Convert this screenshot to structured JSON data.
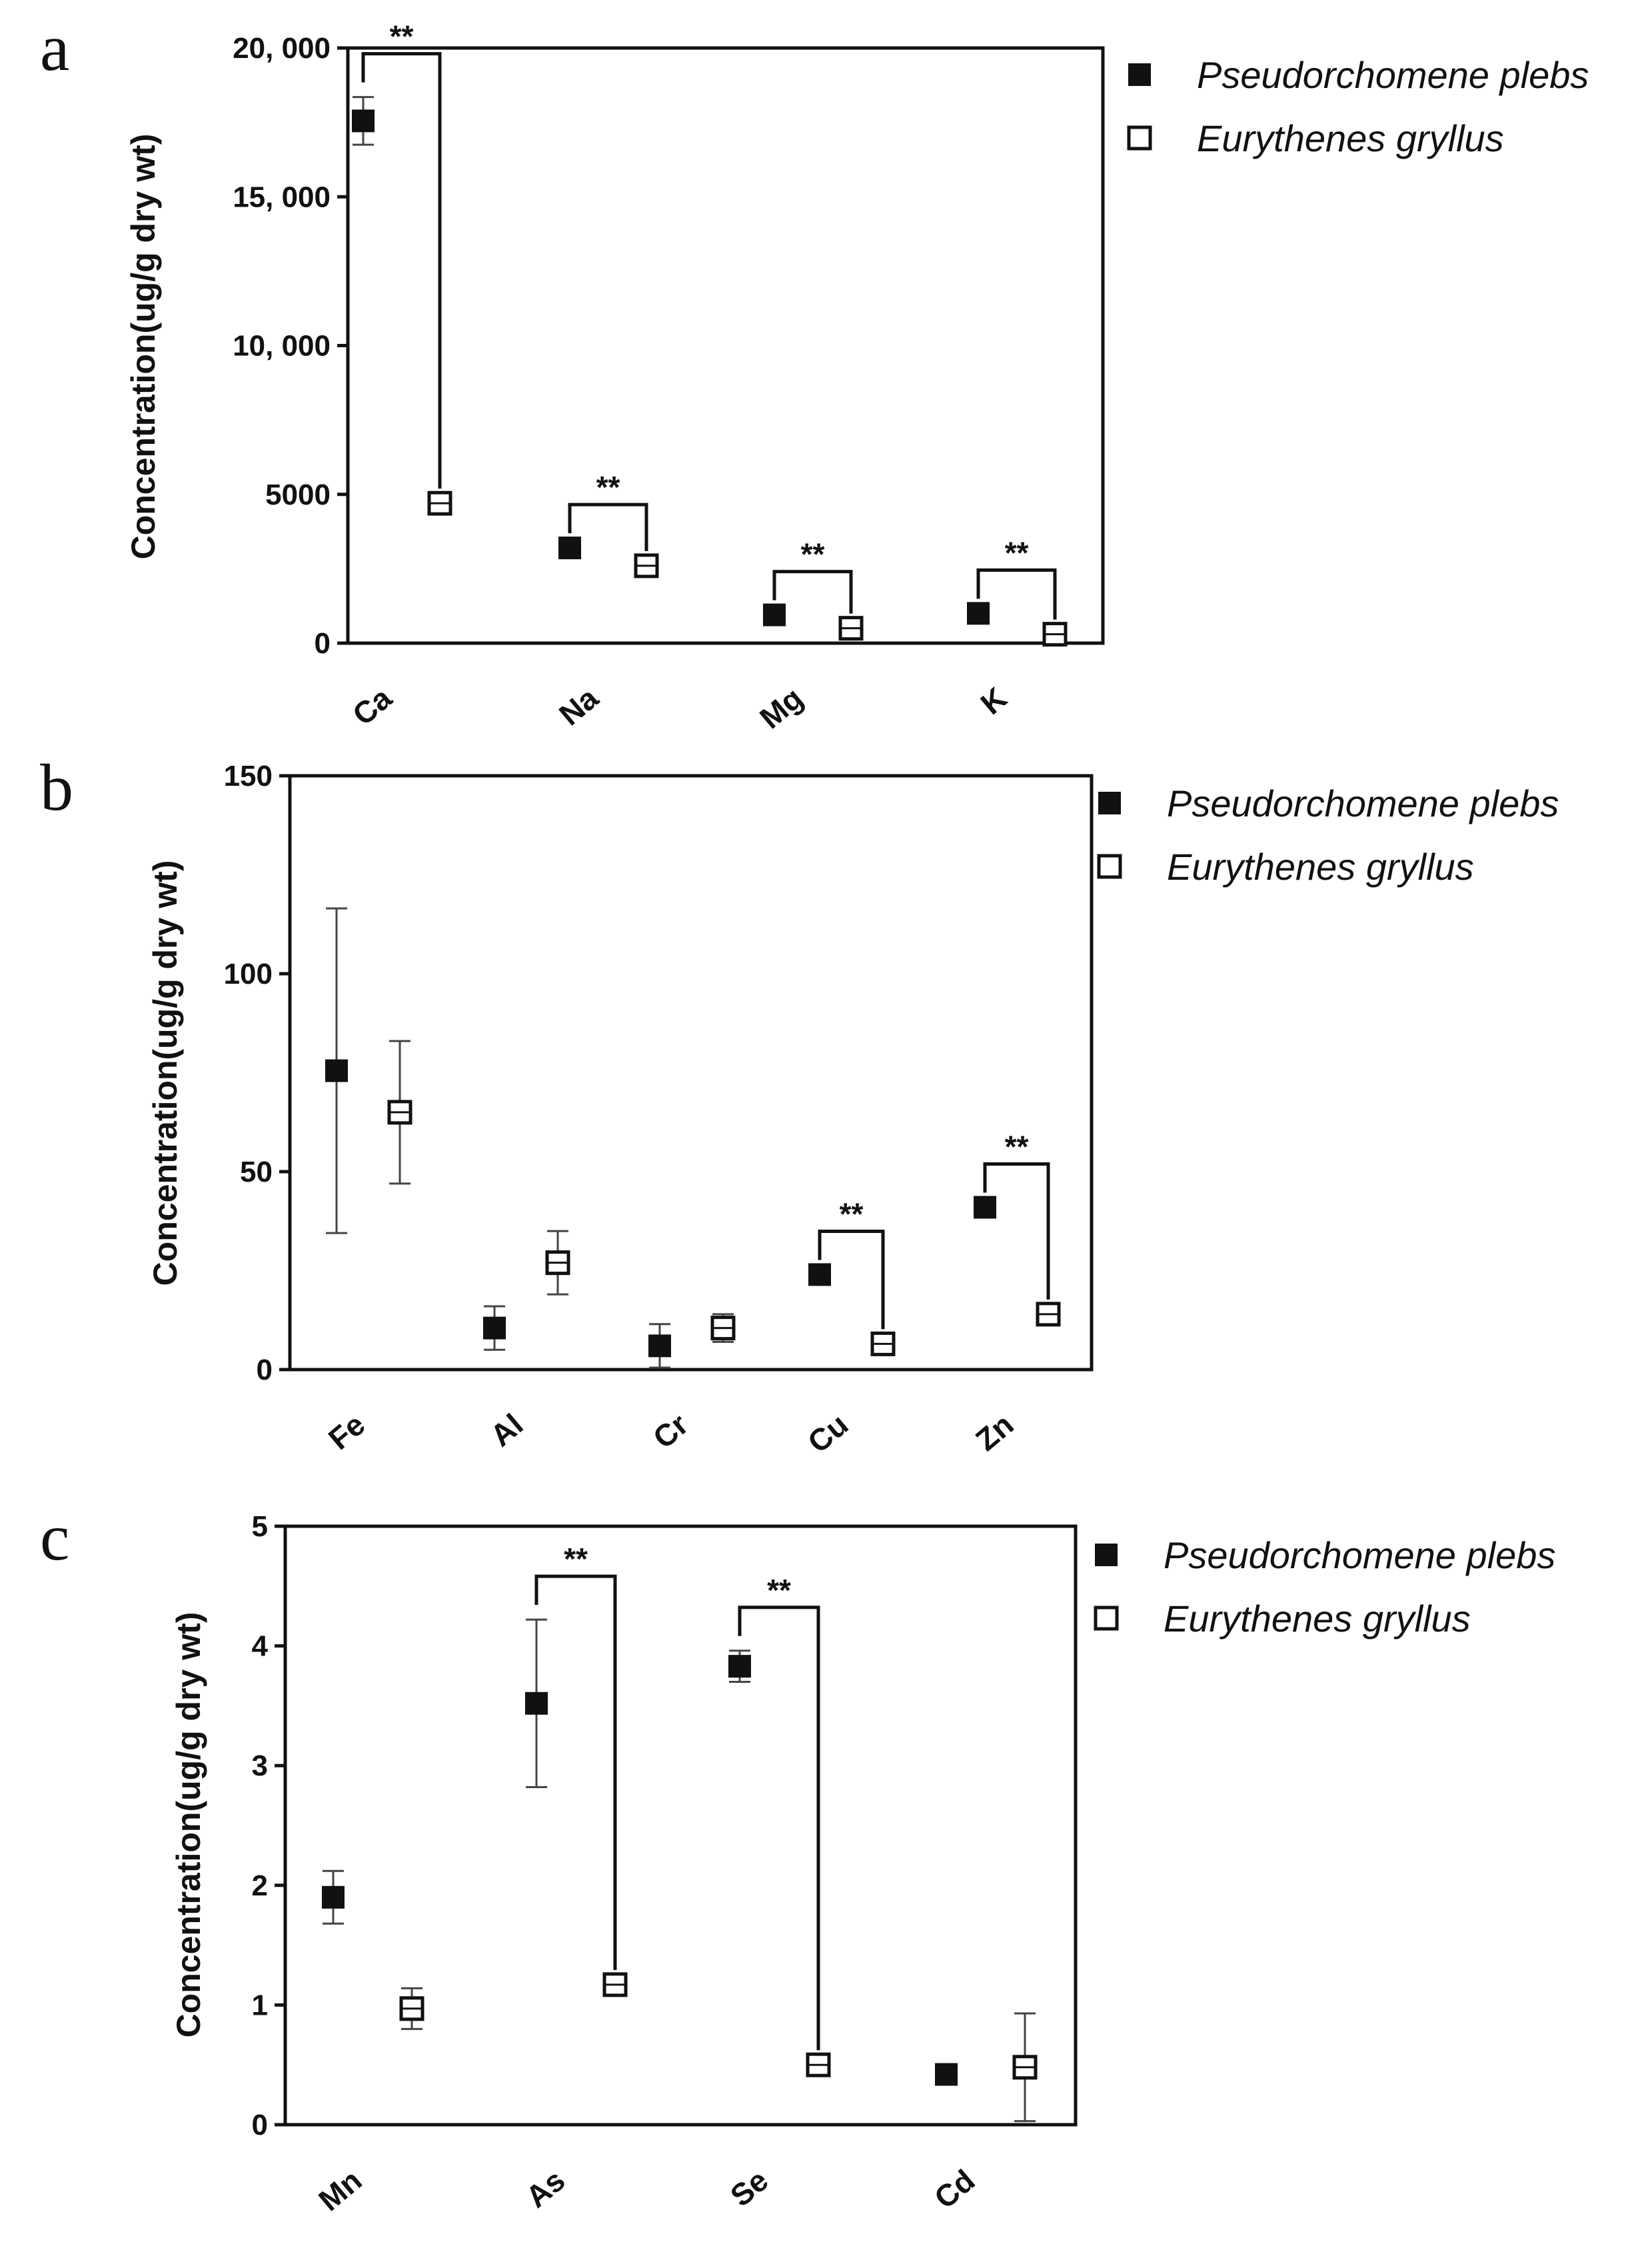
{
  "chart_data": [
    {
      "type": "scatter",
      "panel_label": "a",
      "ylabel": "Concentration(ug/g dry wt)",
      "ylim": [
        0,
        20000
      ],
      "yticks": [
        {
          "value": 0,
          "label": "0"
        },
        {
          "value": 5000,
          "label": "5000"
        },
        {
          "value": 10000,
          "label": "10, 000"
        },
        {
          "value": 15000,
          "label": "15, 000"
        },
        {
          "value": 20000,
          "label": "20, 000"
        }
      ],
      "categories": [
        "Ca",
        "Na",
        "Mg",
        "K"
      ],
      "series": [
        {
          "name": "Pseudorchomene plebs",
          "marker": "filled-square",
          "values": [
            17550,
            3200,
            950,
            1000
          ],
          "errors": [
            800,
            0,
            0,
            0
          ]
        },
        {
          "name": "Eurythenes gryllus",
          "marker": "open-square",
          "values": [
            4700,
            2600,
            500,
            300
          ],
          "errors": [
            0,
            0,
            0,
            0
          ]
        }
      ],
      "significance": [
        {
          "category": "Ca",
          "label": "**"
        },
        {
          "category": "Na",
          "label": "**"
        },
        {
          "category": "Mg",
          "label": "**"
        },
        {
          "category": "K",
          "label": "**"
        }
      ],
      "legend_position": "top-right",
      "grid": false
    },
    {
      "type": "scatter",
      "panel_label": "b",
      "ylabel": "Concentration(ug/g dry wt)",
      "ylim": [
        0,
        150
      ],
      "yticks": [
        {
          "value": 0,
          "label": "0"
        },
        {
          "value": 50,
          "label": "50"
        },
        {
          "value": 100,
          "label": "100"
        },
        {
          "value": 150,
          "label": "150"
        }
      ],
      "categories": [
        "Fe",
        "Al",
        "Cr",
        "Cu",
        "Zn"
      ],
      "series": [
        {
          "name": "Pseudorchomene plebs",
          "marker": "filled-square",
          "values": [
            75.5,
            10.5,
            6,
            24,
            41
          ],
          "errors": [
            41,
            5.5,
            5.5,
            0,
            0
          ]
        },
        {
          "name": "Eurythenes gryllus",
          "marker": "open-square",
          "values": [
            65,
            27,
            10.5,
            6.5,
            14
          ],
          "errors": [
            18,
            8,
            3.5,
            0,
            0
          ]
        }
      ],
      "significance": [
        {
          "category": "Cu",
          "label": "**"
        },
        {
          "category": "Zn",
          "label": "**"
        }
      ],
      "legend_position": "top-right",
      "grid": false
    },
    {
      "type": "scatter",
      "panel_label": "c",
      "ylabel": "Concentration(ug/g dry wt)",
      "ylim": [
        0,
        5
      ],
      "yticks": [
        {
          "value": 0,
          "label": "0"
        },
        {
          "value": 1,
          "label": "1"
        },
        {
          "value": 2,
          "label": "2"
        },
        {
          "value": 3,
          "label": "3"
        },
        {
          "value": 4,
          "label": "4"
        },
        {
          "value": 5,
          "label": "5"
        }
      ],
      "categories": [
        "Mn",
        "As",
        "Se",
        "Cd"
      ],
      "series": [
        {
          "name": "Pseudorchomene plebs",
          "marker": "filled-square",
          "values": [
            1.9,
            3.52,
            3.83,
            0.42
          ],
          "errors": [
            0.22,
            0.7,
            0.13,
            0
          ]
        },
        {
          "name": "Eurythenes gryllus",
          "marker": "open-square",
          "values": [
            0.97,
            1.17,
            0.5,
            0.48
          ],
          "errors": [
            0.17,
            0,
            0,
            0.45
          ]
        }
      ],
      "significance": [
        {
          "category": "As",
          "label": "**"
        },
        {
          "category": "Se",
          "label": "**"
        }
      ],
      "legend_position": "top-right",
      "grid": false
    }
  ]
}
